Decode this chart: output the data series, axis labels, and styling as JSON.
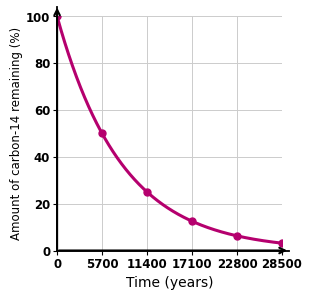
{
  "title": "",
  "xlabel": "Time (years)",
  "ylabel": "Amount of carbon-14 remaining (%)",
  "line_color": "#b5006e",
  "marker_color": "#b5006e",
  "background_color": "#ffffff",
  "grid_color": "#cccccc",
  "data_points_x": [
    0,
    5700,
    11400,
    17100,
    22800,
    28500
  ],
  "data_points_y": [
    100,
    50,
    25,
    12.5,
    6.25,
    3.125
  ],
  "half_life": 5700,
  "xlim": [
    0,
    28500
  ],
  "ylim": [
    0,
    100
  ],
  "xticks": [
    0,
    5700,
    11400,
    17100,
    22800,
    28500
  ],
  "yticks": [
    0,
    20,
    40,
    60,
    80,
    100
  ],
  "xlabel_fontsize": 10,
  "ylabel_fontsize": 8.5,
  "tick_fontsize": 8.5,
  "tick_fontweight": "bold",
  "label_fontweight": "normal",
  "line_width": 2.2,
  "marker_size": 5
}
